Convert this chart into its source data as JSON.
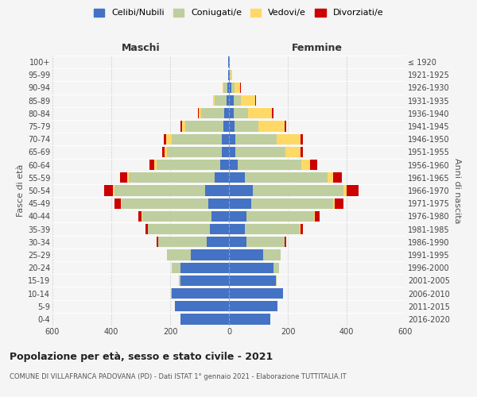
{
  "age_groups": [
    "0-4",
    "5-9",
    "10-14",
    "15-19",
    "20-24",
    "25-29",
    "30-34",
    "35-39",
    "40-44",
    "45-49",
    "50-54",
    "55-59",
    "60-64",
    "65-69",
    "70-74",
    "75-79",
    "80-84",
    "85-89",
    "90-94",
    "95-99",
    "100+"
  ],
  "birth_years": [
    "2016-2020",
    "2011-2015",
    "2006-2010",
    "2001-2005",
    "1996-2000",
    "1991-1995",
    "1986-1990",
    "1981-1985",
    "1976-1980",
    "1971-1975",
    "1966-1970",
    "1961-1965",
    "1956-1960",
    "1951-1955",
    "1946-1950",
    "1941-1945",
    "1936-1940",
    "1931-1935",
    "1926-1930",
    "1921-1925",
    "≤ 1920"
  ],
  "males": {
    "celibi": [
      165,
      185,
      195,
      165,
      165,
      130,
      75,
      65,
      60,
      70,
      80,
      50,
      30,
      25,
      25,
      20,
      15,
      8,
      5,
      2,
      2
    ],
    "coniugati": [
      0,
      0,
      2,
      5,
      30,
      80,
      165,
      210,
      235,
      295,
      310,
      290,
      215,
      185,
      170,
      130,
      80,
      40,
      15,
      2,
      0
    ],
    "vedovi": [
      0,
      0,
      0,
      0,
      0,
      0,
      0,
      2,
      2,
      2,
      5,
      5,
      8,
      10,
      18,
      10,
      8,
      5,
      2,
      0,
      0
    ],
    "divorziati": [
      0,
      0,
      0,
      0,
      0,
      2,
      5,
      8,
      12,
      22,
      30,
      25,
      18,
      8,
      8,
      5,
      2,
      0,
      0,
      0,
      0
    ]
  },
  "females": {
    "nubili": [
      140,
      165,
      185,
      160,
      150,
      115,
      60,
      55,
      60,
      75,
      80,
      55,
      30,
      22,
      22,
      20,
      15,
      15,
      8,
      4,
      2
    ],
    "coniugate": [
      0,
      0,
      0,
      2,
      20,
      60,
      130,
      185,
      230,
      280,
      310,
      280,
      215,
      170,
      140,
      80,
      50,
      25,
      10,
      2,
      0
    ],
    "vedove": [
      0,
      0,
      0,
      0,
      0,
      0,
      0,
      2,
      2,
      5,
      10,
      20,
      30,
      50,
      80,
      90,
      80,
      50,
      20,
      4,
      2
    ],
    "divorziate": [
      0,
      0,
      0,
      0,
      0,
      2,
      5,
      8,
      15,
      30,
      40,
      30,
      25,
      10,
      8,
      5,
      5,
      2,
      2,
      0,
      0
    ]
  },
  "colors": {
    "celibi": "#4472C4",
    "coniugati": "#BFCE9E",
    "vedovi": "#FFD966",
    "divorziati": "#CC0000"
  },
  "legend_labels": [
    "Celibi/Nubili",
    "Coniugati/e",
    "Vedovi/e",
    "Divorziati/e"
  ],
  "xlim": 600,
  "title": "Popolazione per età, sesso e stato civile - 2021",
  "subtitle": "COMUNE DI VILLAFRANCA PADOVANA (PD) - Dati ISTAT 1° gennaio 2021 - Elaborazione TUTTITALIA.IT",
  "xlabel_left": "Maschi",
  "xlabel_right": "Femmine",
  "ylabel_left": "Fasce di età",
  "ylabel_right": "Anni di nascita",
  "background_color": "#f5f5f5"
}
